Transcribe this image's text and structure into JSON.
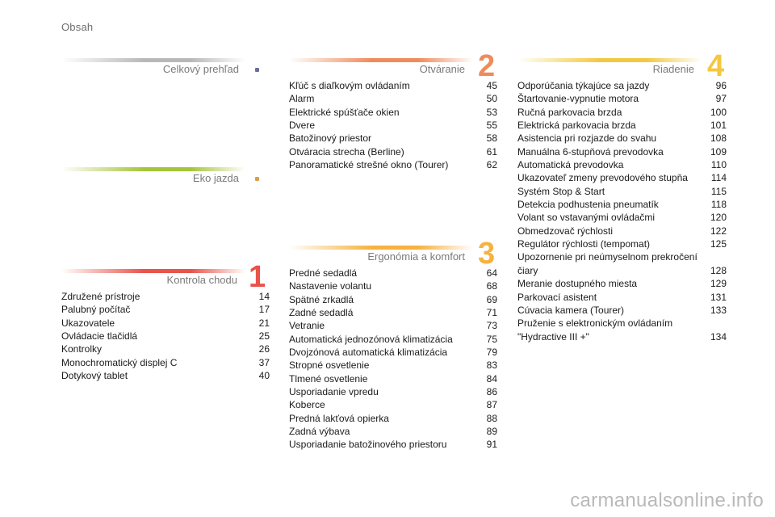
{
  "page_label": "Obsah",
  "sections": {
    "celkovy": {
      "title": "Celkový prehľad",
      "color": "#b8b8b8",
      "dot_color": "#6a6e9c"
    },
    "eko": {
      "title": "Eko jazda",
      "color": "#a6c43a",
      "dot_color": "#d9a04a"
    },
    "kontrola": {
      "title": "Kontrola chodu",
      "number": "1",
      "color": "#e8534a",
      "items": [
        {
          "text": "Združené prístroje",
          "page": "14"
        },
        {
          "text": "Palubný počítač",
          "page": "17"
        },
        {
          "text": "Ukazovatele",
          "page": "21"
        },
        {
          "text": "Ovládacie tlačidlá",
          "page": "25"
        },
        {
          "text": "Kontrolky",
          "page": "26"
        },
        {
          "text": "Monochromatický displej C",
          "page": "37"
        },
        {
          "text": "Dotykový tablet",
          "page": "40"
        }
      ]
    },
    "otvaranie": {
      "title": "Otváranie",
      "number": "2",
      "color": "#f08a5a",
      "items": [
        {
          "text": "Kľúč s diaľkovým ovládaním",
          "page": "45"
        },
        {
          "text": "Alarm",
          "page": "50"
        },
        {
          "text": "Elektrické spúšťače okien",
          "page": "53"
        },
        {
          "text": "Dvere",
          "page": "55"
        },
        {
          "text": "Batožinový priestor",
          "page": "58"
        },
        {
          "text": "Otváracia strecha (Berline)",
          "page": "61"
        },
        {
          "text": "Panoramatické strešné okno (Tourer)",
          "page": "62"
        }
      ]
    },
    "ergonomia": {
      "title": "Ergonómia a komfort",
      "number": "3",
      "color": "#f6b23e",
      "items": [
        {
          "text": "Predné sedadlá",
          "page": "64"
        },
        {
          "text": "Nastavenie volantu",
          "page": "68"
        },
        {
          "text": "Spätné zrkadlá",
          "page": "69"
        },
        {
          "text": "Zadné sedadlá",
          "page": "71"
        },
        {
          "text": "Vetranie",
          "page": "73"
        },
        {
          "text": "Automatická jednozónová klimatizácia",
          "page": "75"
        },
        {
          "text": "Dvojzónová automatická klimatizácia",
          "page": "79"
        },
        {
          "text": "Stropné osvetlenie",
          "page": "83"
        },
        {
          "text": "Tlmené osvetlenie",
          "page": "84"
        },
        {
          "text": "Usporiadanie vpredu",
          "page": "86"
        },
        {
          "text": "Koberce",
          "page": "87"
        },
        {
          "text": "Predná lakťová opierka",
          "page": "88"
        },
        {
          "text": "Zadná výbava",
          "page": "89"
        },
        {
          "text": "Usporiadanie batožinového priestoru",
          "page": "91"
        }
      ]
    },
    "riadenie": {
      "title": "Riadenie",
      "number": "4",
      "color": "#f3c83e",
      "items": [
        {
          "text": "Odporúčania týkajúce sa jazdy",
          "page": "96"
        },
        {
          "text": "Štartovanie-vypnutie motora",
          "page": "97"
        },
        {
          "text": "Ručná parkovacia brzda",
          "page": "100"
        },
        {
          "text": "Elektrická parkovacia brzda",
          "page": "101"
        },
        {
          "text": "Asistencia pri rozjazde do svahu",
          "page": "108"
        },
        {
          "text": "Manuálna 6-stupňová prevodovka",
          "page": "109"
        },
        {
          "text": "Automatická prevodovka",
          "page": "110"
        },
        {
          "text": "Ukazovateľ zmeny prevodového stupňa",
          "page": "114"
        },
        {
          "text": "Systém Stop & Start",
          "page": "115"
        },
        {
          "text": "Detekcia podhustenia pneumatík",
          "page": "118"
        },
        {
          "text": "Volant so vstavanými ovládačmi",
          "page": "120"
        },
        {
          "text": "Obmedzovač rýchlosti",
          "page": "122"
        },
        {
          "text": "Regulátor rýchlosti (tempomat)",
          "page": "125"
        },
        {
          "text": "Upozornenie pri neúmyselnom prekročení čiary",
          "page": "128"
        },
        {
          "text": "Meranie dostupného miesta",
          "page": "129"
        },
        {
          "text": "Parkovací asistent",
          "page": "131"
        },
        {
          "text": "Cúvacia kamera (Tourer)",
          "page": "133"
        },
        {
          "text": "Pruženie s elektronickým ovládaním \"Hydractive III +\"",
          "page": "134"
        }
      ]
    }
  },
  "watermark": "carmanualsonline.info"
}
